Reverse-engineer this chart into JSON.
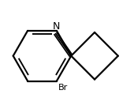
{
  "bg_color": "#ffffff",
  "line_color": "#000000",
  "line_width": 1.6,
  "font_size_N": 9,
  "font_size_Br": 8,
  "N_label": "N",
  "Br_label": "Br",
  "figsize": [
    1.7,
    1.38
  ],
  "dpi": 100
}
